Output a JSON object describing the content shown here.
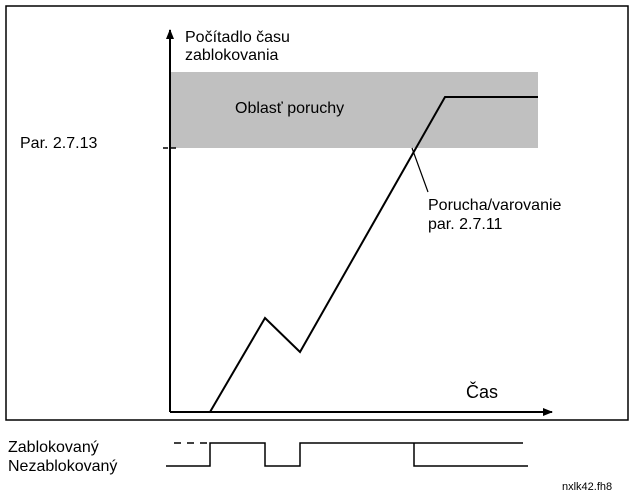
{
  "y_axis_label": [
    "Počítadlo času",
    "zablokovania"
  ],
  "zone_label": "Oblasť poruchy",
  "limit_label": "Par. 2.7.13",
  "annotation": [
    "Porucha/varovanie",
    "par. 2.7.11"
  ],
  "x_axis_label": "Čas",
  "signal_labels": [
    "Zablokovaný",
    "Nezablokovaný"
  ],
  "file_label": "nxlk42.fh8"
}
